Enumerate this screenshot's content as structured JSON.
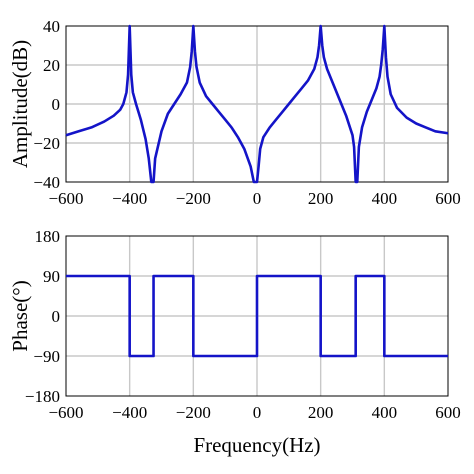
{
  "chart_data": [
    {
      "type": "line",
      "title": "",
      "xlabel": "",
      "ylabel": "Amplitude(dB)",
      "xlim": [
        -600,
        600
      ],
      "ylim": [
        -40,
        40
      ],
      "grid": true,
      "xticks": [
        -600,
        -400,
        -200,
        0,
        200,
        400,
        600
      ],
      "yticks": [
        -40,
        -20,
        0,
        20,
        40
      ],
      "xtick_labels": [
        "−600",
        "−400",
        "−200",
        "0",
        "200",
        "400",
        "600"
      ],
      "ytick_labels": [
        "−40",
        "−20",
        "0",
        "20",
        "40"
      ],
      "series": [
        {
          "color": "#1414c8",
          "x": [
            -600,
            -560,
            -520,
            -480,
            -450,
            -430,
            -420,
            -410,
            -405,
            -400,
            -395,
            -390,
            -380,
            -365,
            -350,
            -340,
            -332,
            -325,
            -320,
            -300,
            -280,
            -260,
            -240,
            -220,
            -210,
            -205,
            -200,
            -195,
            -190,
            -180,
            -160,
            -140,
            -120,
            -100,
            -80,
            -60,
            -40,
            -20,
            -10,
            -5,
            0,
            5,
            10,
            20,
            40,
            60,
            80,
            100,
            120,
            140,
            160,
            180,
            190,
            195,
            200,
            205,
            210,
            220,
            240,
            260,
            280,
            300,
            305,
            310,
            315,
            320,
            330,
            345,
            360,
            375,
            385,
            390,
            395,
            400,
            405,
            410,
            420,
            440,
            470,
            500,
            530,
            560,
            600
          ],
          "y": [
            -16,
            -14,
            -12,
            -9,
            -6,
            -3,
            0,
            6,
            15,
            40,
            15,
            6,
            0,
            -8,
            -18,
            -28,
            -40,
            -40,
            -28,
            -14,
            -5,
            0,
            5,
            11,
            19,
            27,
            40,
            27,
            19,
            11,
            4,
            0,
            -4,
            -8,
            -12,
            -17,
            -23,
            -32,
            -40,
            -40,
            -40,
            -32,
            -23,
            -17,
            -12,
            -8,
            -4,
            0,
            4,
            8,
            12,
            18,
            24,
            30,
            40,
            30,
            24,
            18,
            10,
            2,
            -6,
            -16,
            -22,
            -40,
            -40,
            -22,
            -12,
            -4,
            2,
            8,
            14,
            20,
            28,
            40,
            24,
            14,
            5,
            -2,
            -7,
            -10,
            -12,
            -14,
            -15
          ]
        }
      ]
    },
    {
      "type": "line",
      "title": "",
      "xlabel": "Frequency(Hz)",
      "ylabel": "Phase(°)",
      "xlim": [
        -600,
        600
      ],
      "ylim": [
        -180,
        180
      ],
      "grid": true,
      "xticks": [
        -600,
        -400,
        -200,
        0,
        200,
        400,
        600
      ],
      "yticks": [
        -180,
        -90,
        0,
        90,
        180
      ],
      "xtick_labels": [
        "−600",
        "−400",
        "−200",
        "0",
        "200",
        "400",
        "600"
      ],
      "ytick_labels": [
        "−180",
        "−90",
        "0",
        "90",
        "180"
      ],
      "series": [
        {
          "color": "#1414c8",
          "x": [
            -600,
            -400,
            -400,
            -325,
            -325,
            -200,
            -200,
            0,
            0,
            200,
            200,
            310,
            310,
            400,
            400,
            600
          ],
          "y": [
            90,
            90,
            -90,
            -90,
            90,
            90,
            -90,
            -90,
            90,
            90,
            -90,
            -90,
            90,
            90,
            -90,
            -90
          ]
        }
      ]
    }
  ]
}
